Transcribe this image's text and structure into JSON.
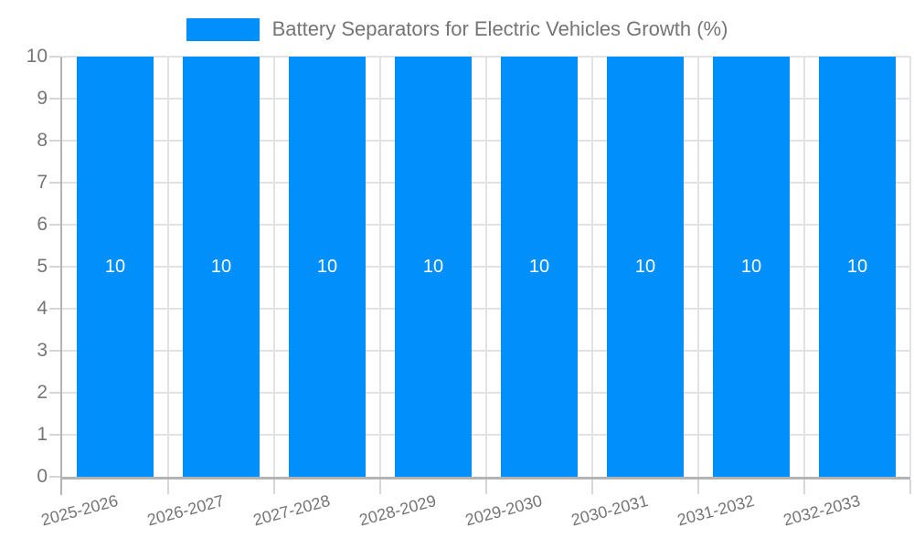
{
  "legend": {
    "label": "Battery Separators for Electric Vehicles Growth (%)"
  },
  "colors": {
    "bar": "#008FFB",
    "grid": "#e2e2e2",
    "axis": "#b3b3b3",
    "tick": "#d6d6d6",
    "text": "#757575",
    "bar_label": "#ffffff"
  },
  "chart_data": {
    "type": "bar",
    "title": "Battery Separators for Electric Vehicles Growth (%)",
    "categories": [
      "2025-2026",
      "2026-2027",
      "2027-2028",
      "2028-2029",
      "2029-2030",
      "2030-2031",
      "2031-2032",
      "2032-2033"
    ],
    "values": [
      10,
      10,
      10,
      10,
      10,
      10,
      10,
      10
    ],
    "data_labels": [
      "10",
      "10",
      "10",
      "10",
      "10",
      "10",
      "10",
      "10"
    ],
    "xlabel": "",
    "ylabel": "",
    "ylim": [
      0,
      10
    ],
    "yticks": [
      0,
      1,
      2,
      3,
      4,
      5,
      6,
      7,
      8,
      9,
      10
    ],
    "grid": true,
    "legend_position": "top",
    "series_name": "Battery Separators for Electric Vehicles Growth (%)"
  }
}
